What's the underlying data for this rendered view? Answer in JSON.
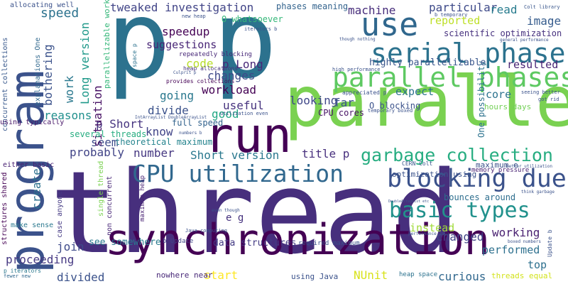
{
  "words": [
    {
      "text": "thread",
      "color": "#472f7d"
    },
    {
      "text": "p",
      "color": "#2c728e"
    },
    {
      "text": "p",
      "color": "#2c728e"
    },
    {
      "text": "parallel",
      "color": "#7ad151"
    },
    {
      "text": "synchronization",
      "color": "#440154"
    },
    {
      "text": "program",
      "color": "#3b528b"
    },
    {
      "text": "run",
      "color": "#440154"
    },
    {
      "text": "use",
      "color": "#30678d"
    },
    {
      "text": "serial phase",
      "color": "#2c728e"
    },
    {
      "text": "parallel phases",
      "color": "#5ec962"
    },
    {
      "text": "blocking due",
      "color": "#3b528b"
    },
    {
      "text": "CPU utilization",
      "color": "#31688e"
    },
    {
      "text": "basic types",
      "color": "#21918c"
    },
    {
      "text": "garbage collection",
      "color": "#27ad81"
    },
    {
      "text": "speed",
      "color": "#2c728e"
    },
    {
      "text": "tweaked investigation",
      "color": "#414487"
    },
    {
      "text": "speedup",
      "color": "#440154"
    },
    {
      "text": "machine",
      "color": "#472d7b"
    },
    {
      "text": "particular",
      "color": "#3e4a89"
    },
    {
      "text": "read",
      "color": "#287c8e"
    },
    {
      "text": "image",
      "color": "#365c8d"
    },
    {
      "text": "reported",
      "color": "#bddf26"
    },
    {
      "text": "suggestions",
      "color": "#482576"
    },
    {
      "text": "code",
      "color": "#b8de29"
    },
    {
      "text": "p Long",
      "color": "#482878"
    },
    {
      "text": "changes",
      "color": "#3e4989"
    },
    {
      "text": "workload",
      "color": "#440154"
    },
    {
      "text": "going",
      "color": "#2a788e"
    },
    {
      "text": "divide",
      "color": "#3b528b"
    },
    {
      "text": "useful",
      "color": "#46337e"
    },
    {
      "text": "good",
      "color": "#22a884"
    },
    {
      "text": "looking",
      "color": "#3f4788"
    },
    {
      "text": "far",
      "color": "#3b528b"
    },
    {
      "text": "expect",
      "color": "#2c728e"
    },
    {
      "text": "core",
      "color": "#2c738e"
    },
    {
      "text": "resulted",
      "color": "#482475"
    },
    {
      "text": "hours days",
      "color": "#73d056"
    },
    {
      "text": "p Short",
      "color": "#463480"
    },
    {
      "text": "know",
      "color": "#404387"
    },
    {
      "text": "seem",
      "color": "#3e4c8a"
    },
    {
      "text": "probably",
      "color": "#414487"
    },
    {
      "text": "number",
      "color": "#453781"
    },
    {
      "text": "Short version",
      "color": "#2a788e"
    },
    {
      "text": "title p",
      "color": "#472f7d"
    },
    {
      "text": "work",
      "color": "#2a788e"
    },
    {
      "text": "reasons",
      "color": "#21908d"
    },
    {
      "text": "bothering",
      "color": "#3b528b"
    },
    {
      "text": "Long version",
      "color": "#1f998a"
    },
    {
      "text": "situation",
      "color": "#471164"
    },
    {
      "text": "create",
      "color": "#2c718e"
    },
    {
      "text": "join",
      "color": "#3e4a89"
    },
    {
      "text": "proceeding",
      "color": "#453882"
    },
    {
      "text": "divided",
      "color": "#3b528b"
    },
    {
      "text": "see somewhere",
      "color": "#297a8e"
    },
    {
      "text": "data structures",
      "color": "#443b84"
    },
    {
      "text": "start",
      "color": "#fde725"
    },
    {
      "text": "NUnit",
      "color": "#d8e219"
    },
    {
      "text": "curious",
      "color": "#31688e"
    },
    {
      "text": "working",
      "color": "#481f70"
    },
    {
      "text": "changed",
      "color": "#414487"
    },
    {
      "text": "performed",
      "color": "#2d708e"
    },
    {
      "text": "top",
      "color": "#2d708e"
    },
    {
      "text": "instead",
      "color": "#a0da39"
    },
    {
      "text": "bounces around",
      "color": "#2e6e8e"
    },
    {
      "text": "e g",
      "color": "#46327e"
    },
    {
      "text": "full speed",
      "color": "#33638d"
    },
    {
      "text": "theoretical maximum",
      "color": "#25848e"
    },
    {
      "text": "several threads",
      "color": "#27ad81"
    },
    {
      "text": "CPU cores",
      "color": "#471365"
    },
    {
      "text": "O blocking",
      "color": "#3b528b"
    },
    {
      "text": "One possibility",
      "color": "#2c728e"
    },
    {
      "text": "highly parallelizable",
      "color": "#39568c"
    },
    {
      "text": "scientific optimization",
      "color": "#46307e"
    },
    {
      "text": "O whatsoever",
      "color": "#35b779"
    },
    {
      "text": "phases meaning",
      "color": "#33638d"
    },
    {
      "text": "allocating well",
      "color": "#3b528b"
    },
    {
      "text": "explanations One",
      "color": "#31688e"
    },
    {
      "text": "concurrent collections",
      "color": "#38588c"
    },
    {
      "text": "using typically",
      "color": "#481769"
    },
    {
      "text": "either basic",
      "color": "#482173"
    },
    {
      "text": "structures shared",
      "color": "#440154"
    },
    {
      "text": "make sense",
      "color": "#2a788e"
    },
    {
      "text": "p iterators",
      "color": "#2a788e"
    },
    {
      "text": "fewer new",
      "color": "#31688e"
    },
    {
      "text": "case anyone",
      "color": "#443983"
    },
    {
      "text": "single thread",
      "color": "#7ad151"
    },
    {
      "text": "non concurrent",
      "color": "#482677"
    },
    {
      "text": "maximum heap",
      "color": "#482173"
    },
    {
      "text": "nowhere near",
      "color": "#482878"
    },
    {
      "text": "using Java",
      "color": "#3b528b"
    },
    {
      "text": "heap space",
      "color": "#2c728e"
    },
    {
      "text": "threads equal",
      "color": "#d2e21b"
    },
    {
      "text": "optimization using",
      "color": "#3b528b"
    },
    {
      "text": "memory pressure",
      "color": "#482173"
    },
    {
      "text": "maximum e",
      "color": "#3b528b"
    },
    {
      "text": "CERN Colt",
      "color": "#39568c"
    },
    {
      "text": "required maximum",
      "color": "#3b528b"
    },
    {
      "text": "b Update",
      "color": "#414487"
    },
    {
      "text": "Update b",
      "color": "#3b528b"
    },
    {
      "text": "parallelizable work",
      "color": "#35b779"
    },
    {
      "text": "space p",
      "color": "#2c728e"
    },
    {
      "text": "repeatedly blocking",
      "color": "#482878"
    },
    {
      "text": "provides collections",
      "color": "#440154"
    },
    {
      "text": "heap allocations",
      "color": "#46337e"
    },
    {
      "text": "high performance",
      "color": "#3b528b"
    },
    {
      "text": "appreciated p",
      "color": "#3b528b"
    },
    {
      "text": "temporary boxed",
      "color": "#3b528b"
    },
    {
      "text": "b temporary",
      "color": "#3b528b"
    },
    {
      "text": "Colt library",
      "color": "#39568c"
    },
    {
      "text": "general performance",
      "color": "#3b528b"
    },
    {
      "text": "though nothing",
      "color": "#3b528b"
    },
    {
      "text": "seeing better",
      "color": "#3b528b"
    },
    {
      "text": "got rid",
      "color": "#3b528b"
    },
    {
      "text": "think garbage",
      "color": "#3b528b"
    },
    {
      "text": "boxed numbers",
      "color": "#3b528b"
    },
    {
      "text": "performance Java",
      "color": "#3b528b"
    },
    {
      "text": "Java computing",
      "color": "#3b528b"
    },
    {
      "text": "even though",
      "color": "#3b528b"
    },
    {
      "text": "better utilization",
      "color": "#3b528b"
    },
    {
      "text": "numbers b",
      "color": "#3b528b"
    },
    {
      "text": "utilization even",
      "color": "#3b528b"
    },
    {
      "text": "iterators b",
      "color": "#3b528b"
    },
    {
      "text": "new heap",
      "color": "#3b528b"
    },
    {
      "text": "Culprit p",
      "color": "#3b528b"
    },
    {
      "text": "IntArrayList DoubleArrayList",
      "color": "#3b528b"
    },
    {
      "text": "DoubleArrayList etc",
      "color": "#3b528b"
    }
  ]
}
